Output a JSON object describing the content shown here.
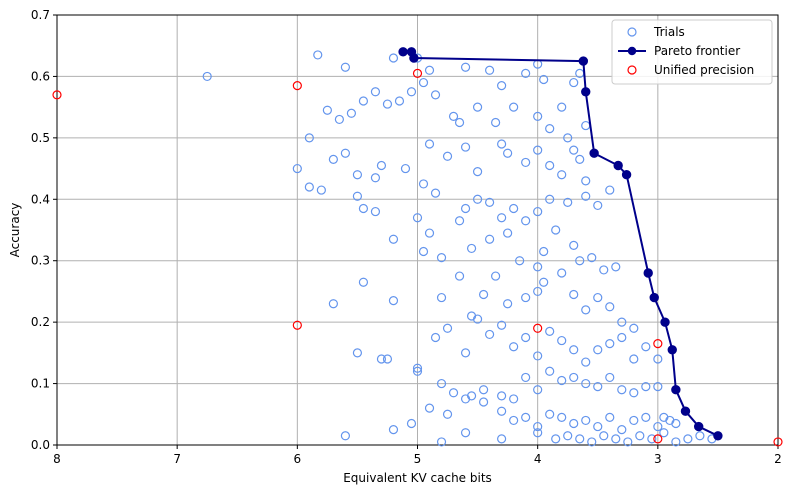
{
  "chart_data": {
    "type": "scatter",
    "xlabel": "Equivalent KV cache bits",
    "ylabel": "Accuracy",
    "xlim": [
      8,
      2
    ],
    "ylim": [
      0,
      0.7
    ],
    "x_inverted": true,
    "grid": true,
    "legend_position": "top-right",
    "x_ticks": [
      8,
      7,
      6,
      5,
      4,
      3,
      2
    ],
    "y_ticks": [
      0.0,
      0.1,
      0.2,
      0.3,
      0.4,
      0.5,
      0.6,
      0.7
    ],
    "x_tick_labels": [
      "8",
      "7",
      "6",
      "5",
      "4",
      "3",
      "2"
    ],
    "y_tick_labels": [
      "0.0",
      "0.1",
      "0.2",
      "0.3",
      "0.4",
      "0.5",
      "0.6",
      "0.7"
    ],
    "colors": {
      "trials": "#6495ed",
      "pareto": "#00008b",
      "unified": "#ff0000",
      "grid": "#b0b0b0"
    },
    "series": [
      {
        "name": "Trials",
        "marker": "hollow-circle",
        "points": [
          [
            6.75,
            0.6
          ],
          [
            5.83,
            0.635
          ],
          [
            5.6,
            0.615
          ],
          [
            5.2,
            0.63
          ],
          [
            5.0,
            0.63
          ],
          [
            4.9,
            0.61
          ],
          [
            4.6,
            0.615
          ],
          [
            4.4,
            0.61
          ],
          [
            4.3,
            0.585
          ],
          [
            4.1,
            0.605
          ],
          [
            4.0,
            0.62
          ],
          [
            3.95,
            0.595
          ],
          [
            3.7,
            0.59
          ],
          [
            3.65,
            0.605
          ],
          [
            5.9,
            0.5
          ],
          [
            5.75,
            0.545
          ],
          [
            5.65,
            0.53
          ],
          [
            5.55,
            0.54
          ],
          [
            5.45,
            0.56
          ],
          [
            5.35,
            0.575
          ],
          [
            5.25,
            0.555
          ],
          [
            5.15,
            0.56
          ],
          [
            5.05,
            0.575
          ],
          [
            4.95,
            0.59
          ],
          [
            4.85,
            0.57
          ],
          [
            4.7,
            0.535
          ],
          [
            4.65,
            0.525
          ],
          [
            4.5,
            0.55
          ],
          [
            4.35,
            0.525
          ],
          [
            4.2,
            0.55
          ],
          [
            4.0,
            0.535
          ],
          [
            3.9,
            0.515
          ],
          [
            3.8,
            0.55
          ],
          [
            3.75,
            0.5
          ],
          [
            3.7,
            0.48
          ],
          [
            3.6,
            0.52
          ],
          [
            6.0,
            0.45
          ],
          [
            5.9,
            0.42
          ],
          [
            5.8,
            0.415
          ],
          [
            5.7,
            0.465
          ],
          [
            5.6,
            0.475
          ],
          [
            5.5,
            0.44
          ],
          [
            5.35,
            0.435
          ],
          [
            5.3,
            0.455
          ],
          [
            5.1,
            0.45
          ],
          [
            4.9,
            0.49
          ],
          [
            4.75,
            0.47
          ],
          [
            4.6,
            0.485
          ],
          [
            4.5,
            0.445
          ],
          [
            4.3,
            0.49
          ],
          [
            4.25,
            0.475
          ],
          [
            4.1,
            0.46
          ],
          [
            4.0,
            0.48
          ],
          [
            3.9,
            0.455
          ],
          [
            3.8,
            0.44
          ],
          [
            3.65,
            0.465
          ],
          [
            3.6,
            0.43
          ],
          [
            5.5,
            0.405
          ],
          [
            5.45,
            0.385
          ],
          [
            5.35,
            0.38
          ],
          [
            4.95,
            0.425
          ],
          [
            4.85,
            0.41
          ],
          [
            4.6,
            0.385
          ],
          [
            4.5,
            0.4
          ],
          [
            4.4,
            0.395
          ],
          [
            4.3,
            0.37
          ],
          [
            4.2,
            0.385
          ],
          [
            4.1,
            0.365
          ],
          [
            4.0,
            0.38
          ],
          [
            3.9,
            0.4
          ],
          [
            3.75,
            0.395
          ],
          [
            3.6,
            0.405
          ],
          [
            3.5,
            0.39
          ],
          [
            3.4,
            0.415
          ],
          [
            5.2,
            0.335
          ],
          [
            5.0,
            0.37
          ],
          [
            4.9,
            0.345
          ],
          [
            4.8,
            0.305
          ],
          [
            4.65,
            0.365
          ],
          [
            4.55,
            0.32
          ],
          [
            4.4,
            0.335
          ],
          [
            4.25,
            0.345
          ],
          [
            4.15,
            0.3
          ],
          [
            4.0,
            0.29
          ],
          [
            3.95,
            0.315
          ],
          [
            3.85,
            0.35
          ],
          [
            3.7,
            0.325
          ],
          [
            3.65,
            0.3
          ],
          [
            3.55,
            0.305
          ],
          [
            3.45,
            0.285
          ],
          [
            3.35,
            0.29
          ],
          [
            5.7,
            0.23
          ],
          [
            5.45,
            0.265
          ],
          [
            5.2,
            0.235
          ],
          [
            4.95,
            0.315
          ],
          [
            4.8,
            0.24
          ],
          [
            4.65,
            0.275
          ],
          [
            4.55,
            0.21
          ],
          [
            4.45,
            0.245
          ],
          [
            4.35,
            0.275
          ],
          [
            4.25,
            0.23
          ],
          [
            4.1,
            0.24
          ],
          [
            4.0,
            0.25
          ],
          [
            3.95,
            0.265
          ],
          [
            3.8,
            0.28
          ],
          [
            3.7,
            0.245
          ],
          [
            3.6,
            0.22
          ],
          [
            3.5,
            0.24
          ],
          [
            3.4,
            0.225
          ],
          [
            3.3,
            0.2
          ],
          [
            3.2,
            0.19
          ],
          [
            5.5,
            0.15
          ],
          [
            5.3,
            0.14
          ],
          [
            5.0,
            0.125
          ],
          [
            4.85,
            0.175
          ],
          [
            4.75,
            0.19
          ],
          [
            4.6,
            0.15
          ],
          [
            4.5,
            0.205
          ],
          [
            4.4,
            0.18
          ],
          [
            4.3,
            0.195
          ],
          [
            4.2,
            0.16
          ],
          [
            4.1,
            0.175
          ],
          [
            4.0,
            0.145
          ],
          [
            3.9,
            0.185
          ],
          [
            3.8,
            0.17
          ],
          [
            3.7,
            0.155
          ],
          [
            3.6,
            0.135
          ],
          [
            3.5,
            0.155
          ],
          [
            3.4,
            0.165
          ],
          [
            3.3,
            0.175
          ],
          [
            3.2,
            0.14
          ],
          [
            3.1,
            0.16
          ],
          [
            3.0,
            0.14
          ],
          [
            5.25,
            0.14
          ],
          [
            5.0,
            0.12
          ],
          [
            4.8,
            0.1
          ],
          [
            4.7,
            0.085
          ],
          [
            4.55,
            0.08
          ],
          [
            4.45,
            0.09
          ],
          [
            4.3,
            0.08
          ],
          [
            4.2,
            0.075
          ],
          [
            4.1,
            0.11
          ],
          [
            4.0,
            0.09
          ],
          [
            3.9,
            0.12
          ],
          [
            3.8,
            0.105
          ],
          [
            3.7,
            0.11
          ],
          [
            3.6,
            0.1
          ],
          [
            3.5,
            0.095
          ],
          [
            3.4,
            0.11
          ],
          [
            3.3,
            0.09
          ],
          [
            3.2,
            0.085
          ],
          [
            3.1,
            0.095
          ],
          [
            3.0,
            0.095
          ],
          [
            5.2,
            0.025
          ],
          [
            5.05,
            0.035
          ],
          [
            4.9,
            0.06
          ],
          [
            4.75,
            0.05
          ],
          [
            4.6,
            0.075
          ],
          [
            4.45,
            0.07
          ],
          [
            4.3,
            0.055
          ],
          [
            4.2,
            0.04
          ],
          [
            4.1,
            0.045
          ],
          [
            4.0,
            0.03
          ],
          [
            3.9,
            0.05
          ],
          [
            3.8,
            0.045
          ],
          [
            3.7,
            0.035
          ],
          [
            3.6,
            0.04
          ],
          [
            3.5,
            0.03
          ],
          [
            3.4,
            0.045
          ],
          [
            3.3,
            0.025
          ],
          [
            3.2,
            0.04
          ],
          [
            3.1,
            0.045
          ],
          [
            3.0,
            0.03
          ],
          [
            2.95,
            0.045
          ],
          [
            2.9,
            0.04
          ],
          [
            2.85,
            0.035
          ],
          [
            5.6,
            0.015
          ],
          [
            4.8,
            0.005
          ],
          [
            4.6,
            0.02
          ],
          [
            4.3,
            0.01
          ],
          [
            4.0,
            0.02
          ],
          [
            3.85,
            0.01
          ],
          [
            3.75,
            0.015
          ],
          [
            3.65,
            0.01
          ],
          [
            3.55,
            0.005
          ],
          [
            3.45,
            0.015
          ],
          [
            3.35,
            0.01
          ],
          [
            3.25,
            0.005
          ],
          [
            3.15,
            0.015
          ],
          [
            3.05,
            0.01
          ],
          [
            2.95,
            0.02
          ],
          [
            2.85,
            0.005
          ],
          [
            2.75,
            0.01
          ],
          [
            2.65,
            0.015
          ],
          [
            2.55,
            0.01
          ]
        ]
      },
      {
        "name": "Pareto frontier",
        "marker": "filled-circle-line",
        "points": [
          [
            5.12,
            0.64
          ],
          [
            5.05,
            0.64
          ],
          [
            5.03,
            0.63
          ],
          [
            3.62,
            0.625
          ],
          [
            3.6,
            0.575
          ],
          [
            3.53,
            0.475
          ],
          [
            3.33,
            0.455
          ],
          [
            3.26,
            0.44
          ],
          [
            3.08,
            0.28
          ],
          [
            3.03,
            0.24
          ],
          [
            2.94,
            0.2
          ],
          [
            2.88,
            0.155
          ],
          [
            2.85,
            0.09
          ],
          [
            2.77,
            0.055
          ],
          [
            2.66,
            0.03
          ],
          [
            2.5,
            0.015
          ]
        ]
      },
      {
        "name": "Unified precision",
        "marker": "hollow-circle",
        "points": [
          [
            8,
            0.57
          ],
          [
            6,
            0.585
          ],
          [
            5,
            0.605
          ],
          [
            6,
            0.195
          ],
          [
            4,
            0.19
          ],
          [
            3,
            0.165
          ],
          [
            3,
            0.01
          ],
          [
            2,
            0.005
          ]
        ]
      }
    ]
  }
}
